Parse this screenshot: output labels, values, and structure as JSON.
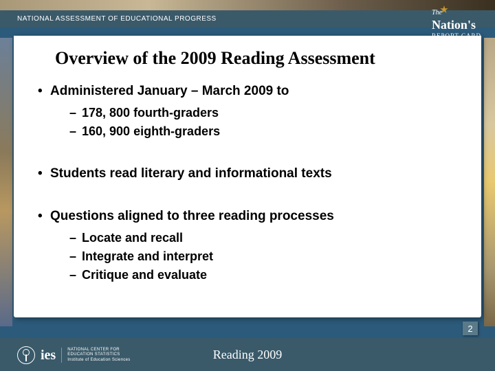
{
  "header": {
    "program_name": "NATIONAL ASSESSMENT OF EDUCATIONAL PROGRESS",
    "logo": {
      "the": "The",
      "nations": "Nation's",
      "report_card": "REPORT CARD"
    }
  },
  "content": {
    "title": "Overview of the 2009 Reading Assessment",
    "bullets": [
      {
        "text": "Administered January – March 2009 to",
        "subs": [
          "178, 800 fourth-graders",
          "160, 900 eighth-graders"
        ]
      },
      {
        "text": "Students read literary and informational texts",
        "subs": []
      },
      {
        "text": "Questions aligned to three reading processes",
        "subs": [
          "Locate and recall",
          "Integrate and interpret",
          "Critique and evaluate"
        ]
      }
    ]
  },
  "footer": {
    "ies": "ies",
    "nces_line1": "NATIONAL CENTER FOR",
    "nces_line2": "EDUCATION STATISTICS",
    "nces_line3": "Institute of Education Sciences",
    "center_text": "Reading 2009"
  },
  "page_number": "2",
  "colors": {
    "header_bg": "#3a5a6a",
    "footer_bg": "#3a5a6a",
    "content_bg": "#ffffff",
    "text": "#000000",
    "footer_text": "#ffffff"
  }
}
